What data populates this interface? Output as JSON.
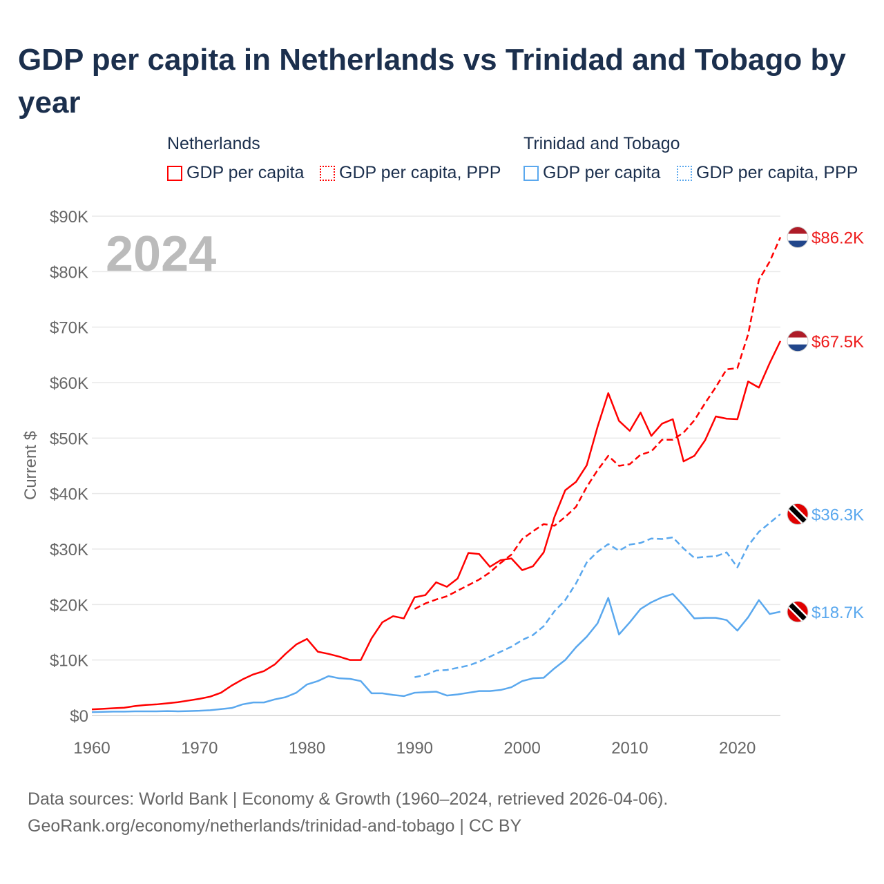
{
  "title": "GDP per capita in Netherlands vs Trinidad and Tobago by year",
  "legend": {
    "groups": [
      {
        "name": "Netherlands",
        "items": [
          "GDP per capita",
          "GDP per capita, PPP"
        ]
      },
      {
        "name": "Trinidad and Tobago",
        "items": [
          "GDP per capita",
          "GDP per capita, PPP"
        ]
      }
    ]
  },
  "source": {
    "line1": "Data sources: World Bank | Economy & Growth (1960–2024, retrieved 2026-04-06).",
    "line2": "GeoRank.org/economy/netherlands/trinidad-and-tobago | CC BY"
  },
  "chart_data": {
    "type": "line",
    "title": "GDP per capita in Netherlands vs Trinidad and Tobago by year",
    "xlabel": "",
    "ylabel": "Current $",
    "year_label": "2024",
    "xlim": [
      1960,
      2024
    ],
    "ylim": [
      0,
      90000
    ],
    "xticks": [
      1960,
      1970,
      1980,
      1990,
      2000,
      2010,
      2020
    ],
    "yticks": [
      {
        "v": 0,
        "l": "$0"
      },
      {
        "v": 10000,
        "l": "$10K"
      },
      {
        "v": 20000,
        "l": "$20K"
      },
      {
        "v": 30000,
        "l": "$30K"
      },
      {
        "v": 40000,
        "l": "$40K"
      },
      {
        "v": 50000,
        "l": "$50K"
      },
      {
        "v": 60000,
        "l": "$60K"
      },
      {
        "v": 70000,
        "l": "$70K"
      },
      {
        "v": 80000,
        "l": "$80K"
      },
      {
        "v": 90000,
        "l": "$90K"
      }
    ],
    "grid": true,
    "series": [
      {
        "name": "Netherlands GDP per capita",
        "color": "#ff0000",
        "dash": false,
        "flag": "netherlands",
        "end_label": "$67.5K",
        "start": 1960,
        "values_k": [
          1.1,
          1.2,
          1.3,
          1.4,
          1.7,
          1.9,
          2.0,
          2.2,
          2.4,
          2.7,
          3.0,
          3.4,
          4.1,
          5.4,
          6.5,
          7.4,
          8.0,
          9.2,
          11.1,
          12.8,
          13.8,
          11.5,
          11.1,
          10.6,
          10.0,
          10.0,
          13.9,
          16.8,
          17.9,
          17.5,
          21.3,
          21.7,
          24.0,
          23.2,
          24.7,
          29.3,
          29.1,
          26.8,
          28.0,
          28.3,
          26.2,
          26.9,
          29.4,
          35.8,
          40.6,
          42.1,
          45.1,
          52.0,
          58.1,
          53.1,
          51.3,
          54.6,
          50.4,
          52.6,
          53.4,
          45.8,
          46.8,
          49.6,
          53.9,
          53.5,
          53.4,
          60.2,
          59.1,
          63.5,
          67.5
        ]
      },
      {
        "name": "Netherlands GDP per capita, PPP",
        "color": "#ff0000",
        "dash": true,
        "flag": "netherlands",
        "end_label": "$86.2K",
        "start": 1990,
        "values_k": [
          19.2,
          20.2,
          20.9,
          21.5,
          22.5,
          23.5,
          24.5,
          25.8,
          27.5,
          29.0,
          31.8,
          33.2,
          34.5,
          34.2,
          35.8,
          37.6,
          41.2,
          44.2,
          46.8,
          45.0,
          45.3,
          47.0,
          47.6,
          49.7,
          49.7,
          51.0,
          53.2,
          56.3,
          59.2,
          62.4,
          62.6,
          68.7,
          78.5,
          81.8,
          86.2
        ]
      },
      {
        "name": "Trinidad and Tobago GDP per capita",
        "color": "#5aa8ee",
        "dash": false,
        "flag": "trinidad",
        "end_label": "$18.7K",
        "start": 1960,
        "values_k": [
          0.6,
          0.65,
          0.7,
          0.7,
          0.75,
          0.75,
          0.75,
          0.8,
          0.75,
          0.8,
          0.85,
          0.95,
          1.15,
          1.35,
          2.0,
          2.35,
          2.35,
          2.9,
          3.3,
          4.1,
          5.6,
          6.2,
          7.1,
          6.7,
          6.6,
          6.2,
          4.0,
          4.0,
          3.7,
          3.5,
          4.1,
          4.2,
          4.3,
          3.6,
          3.8,
          4.1,
          4.4,
          4.4,
          4.6,
          5.1,
          6.2,
          6.7,
          6.8,
          8.5,
          10.0,
          12.3,
          14.2,
          16.6,
          21.2,
          14.6,
          16.8,
          19.2,
          20.4,
          21.3,
          21.9,
          19.8,
          17.5,
          17.6,
          17.6,
          17.2,
          15.3,
          17.7,
          20.8,
          18.3,
          18.7
        ]
      },
      {
        "name": "Trinidad and Tobago GDP per capita, PPP",
        "color": "#5aa8ee",
        "dash": true,
        "flag": "trinidad",
        "end_label": "$36.3K",
        "start": 1990,
        "values_k": [
          6.9,
          7.3,
          8.1,
          8.2,
          8.6,
          9.0,
          9.7,
          10.6,
          11.5,
          12.4,
          13.6,
          14.5,
          16.1,
          18.8,
          20.8,
          23.8,
          27.6,
          29.5,
          30.9,
          29.7,
          30.8,
          31.1,
          31.9,
          31.8,
          32.1,
          30.1,
          28.4,
          28.6,
          28.7,
          29.4,
          26.7,
          30.6,
          33.1,
          34.7,
          36.3
        ]
      }
    ]
  }
}
